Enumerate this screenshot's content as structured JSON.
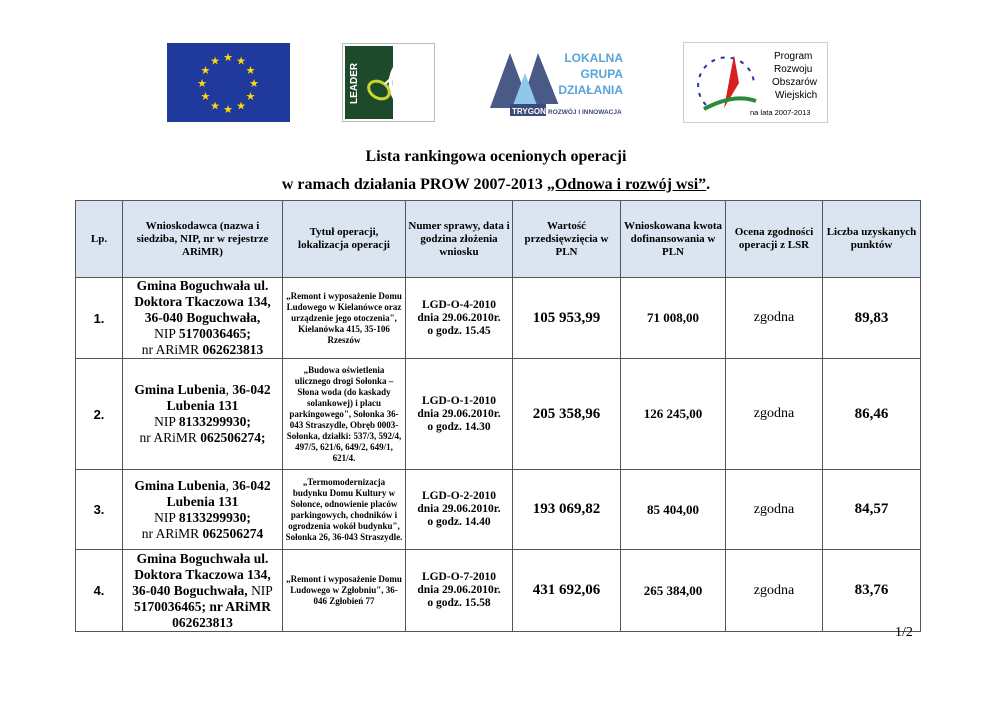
{
  "logos": {
    "eu": "EU flag",
    "leader": "LEADER",
    "lgd": [
      "LOKALNA",
      "GRUPA",
      "DZIAŁANIA"
    ],
    "lgd_bar": [
      "TRYGON",
      "ROZWÓJ I INNOWACJA"
    ],
    "prow": [
      "Program",
      "Rozwoju",
      "Obszarów",
      "Wiejskich",
      "na lata 2007-2013"
    ]
  },
  "title": {
    "line1": "Lista rankingowa ocenionych operacji",
    "line2_prefix": "w ramach działania PROW 2007-2013 ",
    "line2_underlined": "„Odnowa i rozwój wsi”",
    "line2_suffix": "."
  },
  "table": {
    "headers": [
      "Lp.",
      "Wnioskodawca (nazwa i siedziba, NIP, nr w rejestrze ARiMR)",
      "Tytuł operacji, lokalizacja operacji",
      "Numer sprawy, data i godzina złożenia wniosku",
      "Wartość przedsięwzięcia w PLN",
      "Wnioskowana kwota dofinansowania w PLN",
      "Ocena zgodności operacji z LSR",
      "Liczba uzyskanych punktów"
    ],
    "rows": [
      {
        "lp": "1.",
        "applicant": [
          [
            {
              "t": "Gmina Boguchwała ul. Doktora Tkaczowa 134, 36-040 Boguchwała,",
              "b": true
            }
          ],
          [
            {
              "t": "NIP ",
              "b": false
            },
            {
              "t": "5170036465;",
              "b": true
            }
          ],
          [
            {
              "t": "nr ARiMR ",
              "b": false
            },
            {
              "t": "062623813",
              "b": true
            }
          ]
        ],
        "operation": "„Remont i wyposażenie Domu Ludowego w Kielanówce oraz urządzenie jego otoczenia\", Kielanówka 415, 35-106 Rzeszów",
        "case": [
          "LGD-O-4-2010",
          "dnia 29.06.2010r.",
          "o godz. 15.45"
        ],
        "value": "105 953,99",
        "requested": "71 008,00",
        "assessment": "zgodna",
        "points": "89,83"
      },
      {
        "lp": "2.",
        "applicant": [
          [
            {
              "t": "Gmina Lubenia",
              "b": true
            },
            {
              "t": ", ",
              "b": false
            },
            {
              "t": "36-042 Lubenia 131",
              "b": true
            }
          ],
          [
            {
              "t": "NIP ",
              "b": false
            },
            {
              "t": "8133299930;",
              "b": true
            }
          ],
          [
            {
              "t": "nr ARiMR ",
              "b": false
            },
            {
              "t": "062506274;",
              "b": true
            }
          ]
        ],
        "operation": "„Budowa oświetlenia ulicznego drogi Sołonka – Słona woda (do kaskady solankowej) i placu parkingowego\", Sołonka 36-043 Straszydle, Obręb 0003-Sołonka, działki: 537/3, 592/4, 497/5, 621/6, 649/2, 649/1, 621/4.",
        "case": [
          "LGD-O-1-2010",
          "dnia 29.06.2010r.",
          "o godz. 14.30"
        ],
        "value": "205 358,96",
        "requested": "126 245,00",
        "assessment": "zgodna",
        "points": "86,46"
      },
      {
        "lp": "3.",
        "applicant": [
          [
            {
              "t": "Gmina Lubenia",
              "b": true
            },
            {
              "t": ", ",
              "b": false
            },
            {
              "t": "36-042 Lubenia 131",
              "b": true
            }
          ],
          [
            {
              "t": "NIP ",
              "b": false
            },
            {
              "t": "8133299930;",
              "b": true
            }
          ],
          [
            {
              "t": "nr ARiMR ",
              "b": false
            },
            {
              "t": "062506274",
              "b": true
            }
          ]
        ],
        "operation": "„Termomodernizacja budynku Domu Kultury w Sołonce, odnowienie placów parkingowych, chodników i ogrodzenia wokół budynku\", Sołonka 26, 36-043 Straszydle.",
        "case": [
          "LGD-O-2-2010",
          "dnia 29.06.2010r.",
          "o godz. 14.40"
        ],
        "value": "193 069,82",
        "requested": "85 404,00",
        "assessment": "zgodna",
        "points": "84,57"
      },
      {
        "lp": "4.",
        "applicant": [
          [
            {
              "t": "Gmina Boguchwała ul. Doktora Tkaczowa 134, 36-040 Boguchwała, ",
              "b": true
            },
            {
              "t": "NIP ",
              "b": false
            },
            {
              "t": "5170036465; nr ARiMR 062623813",
              "b": true
            }
          ]
        ],
        "operation": "„Remont i wyposażenie Domu Ludowego w Zgłobniu\", 36-046 Zgłobień 77",
        "case": [
          "LGD-O-7-2010",
          "dnia 29.06.2010r.",
          "o godz. 15.58"
        ],
        "value": "431 692,06",
        "requested": "265 384,00",
        "assessment": "zgodna",
        "points": "83,76"
      }
    ]
  },
  "page_number": "1/2",
  "colors": {
    "header_bg": "#dbe5f1",
    "eu_blue": "#1f3a9c",
    "eu_star": "#ffdd00",
    "leader_green": "#1d4a2a"
  }
}
